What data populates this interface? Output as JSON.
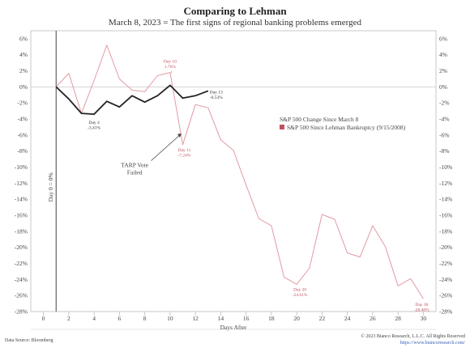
{
  "chart_data": {
    "type": "line",
    "title": "Comparing to Lehman",
    "subtitle": "March 8, 2023 = The first signs of regional banking problems emerged",
    "xlabel": "Days After",
    "ylabel": "",
    "xlim": [
      -1,
      31
    ],
    "ylim": [
      -28,
      7
    ],
    "x_ticks": [
      0,
      2,
      4,
      6,
      8,
      10,
      12,
      14,
      16,
      18,
      20,
      22,
      24,
      26,
      28,
      30
    ],
    "y_ticks": [
      6,
      4,
      2,
      0,
      -2,
      -4,
      -6,
      -8,
      -10,
      -12,
      -14,
      -16,
      -18,
      -20,
      -22,
      -24,
      -26,
      -28
    ],
    "y_tick_labels": [
      "6%",
      "4%",
      "2%",
      "0%",
      "-2%",
      "-4%",
      "-6%",
      "-8%",
      "-10%",
      "-12%",
      "-14%",
      "-16%",
      "-18%",
      "-20%",
      "-22%",
      "-24%",
      "-26%",
      "-28%"
    ],
    "grid": false,
    "legend_position": "right-middle",
    "series": [
      {
        "name": "S&P 500 Change Since March 8",
        "color": "#222222",
        "x": [
          1,
          2,
          3,
          4,
          5,
          6,
          7,
          8,
          9,
          10,
          11,
          12,
          13
        ],
        "y": [
          0.0,
          -1.5,
          -3.3,
          -3.4,
          -1.8,
          -2.5,
          -1.1,
          -1.9,
          -1.1,
          0.2,
          -1.4,
          -1.1,
          -0.5
        ]
      },
      {
        "name": "S&P 500 Since Lehman Bankruptcy (9/15/2008)",
        "color": "#e19aa3",
        "x": [
          1,
          2,
          3,
          4,
          5,
          6,
          7,
          8,
          9,
          10,
          11,
          12,
          13,
          14,
          15,
          16,
          17,
          18,
          19,
          20,
          21,
          22,
          23,
          24,
          25,
          26,
          27,
          28,
          29,
          30
        ],
        "y": [
          0.0,
          1.7,
          -3.3,
          0.8,
          5.2,
          1.0,
          -0.4,
          -0.6,
          1.4,
          1.8,
          -7.2,
          -2.2,
          -2.6,
          -6.6,
          -7.9,
          -12.2,
          -16.4,
          -17.3,
          -23.7,
          -24.6,
          -22.6,
          -15.9,
          -16.5,
          -20.7,
          -21.2,
          -17.3,
          -19.9,
          -24.8,
          -23.9,
          -26.4
        ]
      }
    ],
    "reference_lines": [
      {
        "axis": "x",
        "value": 1,
        "label": "Day 0 = 0%"
      },
      {
        "axis": "y",
        "value": 0
      }
    ],
    "annotations": [
      {
        "text_lines": [
          "Day 4",
          "-3.41%"
        ],
        "x": 4,
        "y": -3.4,
        "series": 0
      },
      {
        "text_lines": [
          "Day 13",
          "-0.53%"
        ],
        "x": 13,
        "y": -0.5,
        "series": 0
      },
      {
        "text_lines": [
          "Day 10",
          "1.76%"
        ],
        "x": 10,
        "y": 1.8,
        "series": 1
      },
      {
        "text_lines": [
          "Day 11",
          "-7.24%"
        ],
        "x": 11,
        "y": -7.2,
        "series": 1
      },
      {
        "text_lines": [
          "Day 20",
          "-24.61%"
        ],
        "x": 20,
        "y": -24.6,
        "series": 1
      },
      {
        "text_lines": [
          "Day 30",
          "-26.40%"
        ],
        "x": 30,
        "y": -26.4,
        "series": 1
      },
      {
        "text_lines": [
          "TARP Vote",
          "Failed"
        ],
        "x": 11,
        "y": -6.6,
        "series": -1
      }
    ]
  },
  "footer": {
    "source": "Data Source: Bloomberg",
    "copyright": "© 2023 Bianco Research, L.L.C. All Rights Reserved",
    "url": "https://www.biancoresearch.com/"
  }
}
